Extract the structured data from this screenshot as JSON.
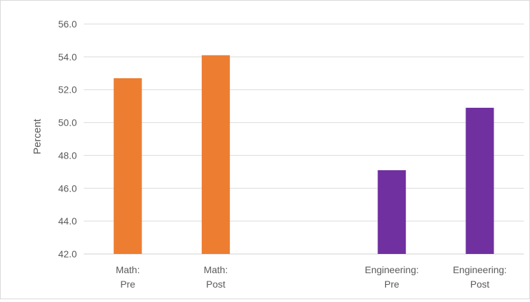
{
  "chart_data": {
    "type": "bar",
    "categories": [
      [
        "Math:",
        "Pre"
      ],
      [
        "Math:",
        "Post"
      ],
      [
        "",
        ""
      ],
      [
        "Engineering:",
        "Pre"
      ],
      [
        "Engineering:",
        "Post"
      ]
    ],
    "values": [
      52.7,
      54.1,
      null,
      47.1,
      50.9
    ],
    "bar_colors": [
      "#ed7d31",
      "#ed7d31",
      null,
      "#7030a0",
      "#7030a0"
    ],
    "ylabel": "Percent",
    "ylim": [
      42.0,
      56.0
    ],
    "yticks": [
      "42.0",
      "44.0",
      "46.0",
      "48.0",
      "50.0",
      "52.0",
      "54.0",
      "56.0"
    ],
    "grid": true,
    "colors": {
      "grid": "#d9d9d9",
      "text": "#595959"
    }
  }
}
